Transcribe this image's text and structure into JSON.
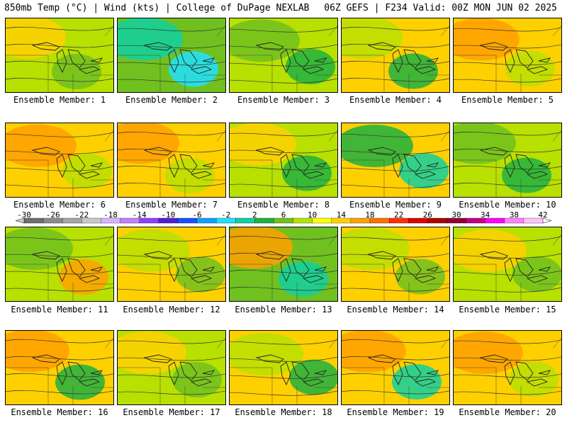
{
  "header": {
    "left": "850mb Temp (°C) | Wind (kts) | College of DuPage NEXLAB",
    "right": "06Z GEFS | F234 Valid: 00Z MON JUN 02 2025"
  },
  "colorbar": {
    "tick_labels": [
      "-30",
      "-26",
      "-22",
      "-18",
      "-14",
      "-10",
      "-6",
      "-2",
      "2",
      "6",
      "10",
      "14",
      "18",
      "22",
      "26",
      "30",
      "34",
      "38",
      "42"
    ],
    "colors": [
      "#6e6e6e",
      "#8a8a8a",
      "#a5a5a5",
      "#c8c8c8",
      "#d9b3ff",
      "#c080ff",
      "#9040ff",
      "#5020d0",
      "#1850ff",
      "#10a0ff",
      "#20e0ff",
      "#10d0a0",
      "#20b040",
      "#70c020",
      "#b8e000",
      "#ffff00",
      "#ffd000",
      "#ffa000",
      "#ff7000",
      "#ff3000",
      "#e00000",
      "#b00000",
      "#900030",
      "#c00080",
      "#ff00ff",
      "#ff80ff",
      "#ffc0ff"
    ]
  },
  "panels": [
    {
      "label": "Ensemble Member: 1",
      "base": "#b8e000",
      "features": [
        {
          "c": "#ffd000"
        },
        {
          "c": "#70c020"
        }
      ]
    },
    {
      "label": "Ensemble Member: 2",
      "base": "#70c020",
      "features": [
        {
          "c": "#10d0a0"
        },
        {
          "c": "#20e0ff"
        }
      ]
    },
    {
      "label": "Ensemble Member: 3",
      "base": "#b8e000",
      "features": [
        {
          "c": "#70c020"
        },
        {
          "c": "#20b040"
        }
      ]
    },
    {
      "label": "Ensemble Member: 4",
      "base": "#ffd000",
      "features": [
        {
          "c": "#b8e000"
        },
        {
          "c": "#20b040"
        }
      ]
    },
    {
      "label": "Ensemble Member: 5",
      "base": "#ffd000",
      "features": [
        {
          "c": "#ffa000"
        },
        {
          "c": "#b8e000"
        }
      ]
    },
    {
      "label": "Ensemble Member: 6",
      "base": "#ffd000",
      "features": [
        {
          "c": "#ffa000"
        },
        {
          "c": "#b8e000"
        }
      ]
    },
    {
      "label": "Ensemble Member: 7",
      "base": "#ffd000",
      "features": [
        {
          "c": "#ffa000"
        },
        {
          "c": "#b8e000"
        }
      ]
    },
    {
      "label": "Ensemble Member: 8",
      "base": "#b8e000",
      "features": [
        {
          "c": "#ffd000"
        },
        {
          "c": "#20b040"
        }
      ]
    },
    {
      "label": "Ensemble Member: 9",
      "base": "#ffd000",
      "features": [
        {
          "c": "#20b040"
        },
        {
          "c": "#10d0a0"
        }
      ]
    },
    {
      "label": "Ensemble Member: 10",
      "base": "#b8e000",
      "features": [
        {
          "c": "#70c020"
        },
        {
          "c": "#20b040"
        }
      ]
    },
    {
      "label": "Ensemble Member: 11",
      "base": "#b8e000",
      "features": [
        {
          "c": "#70c020"
        },
        {
          "c": "#ffa000"
        }
      ]
    },
    {
      "label": "Ensemble Member: 12",
      "base": "#ffd000",
      "features": [
        {
          "c": "#b8e000"
        },
        {
          "c": "#70c020"
        }
      ]
    },
    {
      "label": "Ensemble Member: 13",
      "base": "#70c020",
      "features": [
        {
          "c": "#ffa000"
        },
        {
          "c": "#10d0a0"
        }
      ]
    },
    {
      "label": "Ensemble Member: 14",
      "base": "#ffd000",
      "features": [
        {
          "c": "#b8e000"
        },
        {
          "c": "#70c020"
        }
      ]
    },
    {
      "label": "Ensemble Member: 15",
      "base": "#b8e000",
      "features": [
        {
          "c": "#ffd000"
        },
        {
          "c": "#70c020"
        }
      ]
    },
    {
      "label": "Ensemble Member: 16",
      "base": "#ffd000",
      "features": [
        {
          "c": "#ffa000"
        },
        {
          "c": "#20b040"
        }
      ]
    },
    {
      "label": "Ensemble Member: 17",
      "base": "#b8e000",
      "features": [
        {
          "c": "#ffd000"
        },
        {
          "c": "#70c020"
        }
      ]
    },
    {
      "label": "Ensemble Member: 18",
      "base": "#ffd000",
      "features": [
        {
          "c": "#b8e000"
        },
        {
          "c": "#20b040"
        }
      ]
    },
    {
      "label": "Ensemble Member: 19",
      "base": "#ffd000",
      "features": [
        {
          "c": "#ffa000"
        },
        {
          "c": "#10d0a0"
        }
      ]
    },
    {
      "label": "Ensemble Member: 20",
      "base": "#ffd000",
      "features": [
        {
          "c": "#ffa000"
        },
        {
          "c": "#b8e000"
        }
      ]
    }
  ]
}
